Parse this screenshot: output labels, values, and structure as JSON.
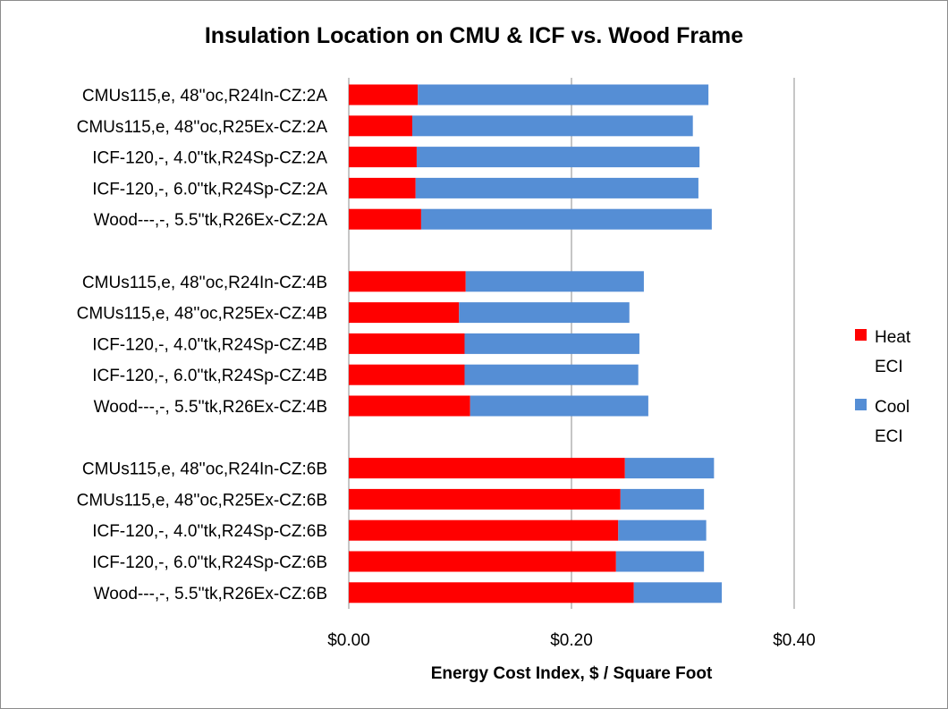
{
  "chart_data": {
    "type": "bar",
    "orientation": "horizontal",
    "stacked": true,
    "title": "Insulation Location on CMU & ICF vs. Wood Frame",
    "xlabel": "Energy Cost Index, $ / Square Foot",
    "ylabel": "",
    "xlim": [
      0,
      0.4
    ],
    "xticks": [
      0,
      0.2,
      0.4
    ],
    "xtick_labels": [
      "$0.00",
      "$0.20",
      "$0.40"
    ],
    "grid": "vertical gridlines at $0.20 and $0.40",
    "legend_position": "right",
    "groups": [
      {
        "categories": [
          "CMUs115,e, 48''oc,R24In-CZ:2A",
          "CMUs115,e, 48''oc,R25Ex-CZ:2A",
          "ICF-120,-, 4.0''tk,R24Sp-CZ:2A",
          "ICF-120,-, 6.0''tk,R24Sp-CZ:2A",
          "Wood---,-, 5.5''tk,R26Ex-CZ:2A"
        ]
      },
      {
        "categories": [
          "CMUs115,e, 48''oc,R24In-CZ:4B",
          "CMUs115,e, 48''oc,R25Ex-CZ:4B",
          "ICF-120,-, 4.0''tk,R24Sp-CZ:4B",
          "ICF-120,-, 6.0''tk,R24Sp-CZ:4B",
          "Wood---,-, 5.5''tk,R26Ex-CZ:4B"
        ]
      },
      {
        "categories": [
          "CMUs115,e, 48''oc,R24In-CZ:6B",
          "CMUs115,e, 48''oc,R25Ex-CZ:6B",
          "ICF-120,-, 4.0''tk,R24Sp-CZ:6B",
          "ICF-120,-, 6.0''tk,R24Sp-CZ:6B",
          "Wood---,-, 5.5''tk,R26Ex-CZ:6B"
        ]
      }
    ],
    "series": [
      {
        "name": "Heat ECI",
        "color": "#ff0000",
        "values": [
          0.062,
          0.057,
          0.061,
          0.06,
          0.065,
          0.105,
          0.099,
          0.104,
          0.104,
          0.109,
          0.248,
          0.244,
          0.242,
          0.24,
          0.256
        ]
      },
      {
        "name": "Cool ECI",
        "color": "#558ed5",
        "values": [
          0.261,
          0.252,
          0.254,
          0.254,
          0.261,
          0.16,
          0.153,
          0.157,
          0.156,
          0.16,
          0.08,
          0.075,
          0.079,
          0.079,
          0.079
        ]
      }
    ]
  },
  "legend": {
    "items": [
      {
        "line1": "Heat",
        "line2": "ECI",
        "color": "#ff0000"
      },
      {
        "line1": "Cool",
        "line2": "ECI",
        "color": "#558ed5"
      }
    ]
  }
}
